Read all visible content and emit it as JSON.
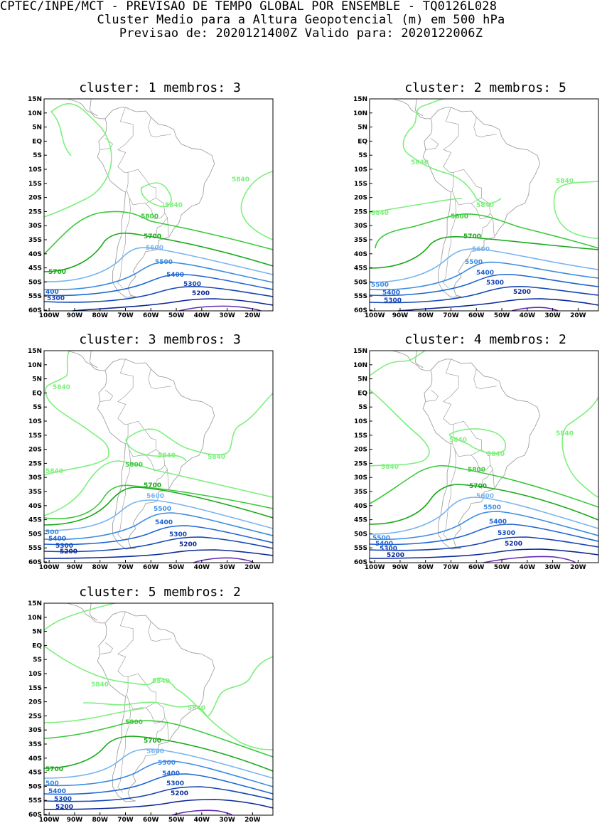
{
  "header": {
    "line1": "CPTEC/INPE/MCT - PREVISAO DE TEMPO GLOBAL POR ENSEMBLE - TQ0126L028",
    "line2": "Cluster Medio para a Altura Geopotencial (m) em 500 hPa",
    "line3": "Previsao de: 2020121400Z    Valido para: 2020122006Z"
  },
  "lat_labels": [
    "15N",
    "10N",
    "5N",
    "EQ",
    "5S",
    "10S",
    "15S",
    "20S",
    "25S",
    "30S",
    "35S",
    "40S",
    "45S",
    "50S",
    "55S",
    "60S"
  ],
  "lon_labels": [
    "100W",
    "90W",
    "80W",
    "70W",
    "60W",
    "50W",
    "40W",
    "30W",
    "20W"
  ],
  "colors": {
    "c5840": "#7cf07c",
    "c5800": "#3cc83c",
    "c5700": "#18a818",
    "c5600": "#78b4f0",
    "c5500": "#3c8ce0",
    "c5400": "#1e64d2",
    "c5300": "#1446b4",
    "c5200": "#0a2896",
    "c5100": "#6428b4",
    "coast": "#a0a0a0"
  },
  "panels": [
    {
      "title": "cluster: 1   membros: 3",
      "labels": {
        "5840a": "5840",
        "5840b": "5840",
        "5800": "5800",
        "5700a": "5700",
        "5700b": "5700",
        "5600": "5600",
        "5500": "5500",
        "5400a": "5400",
        "5400b": "400",
        "5300a": "5300",
        "5300b": "5300",
        "5200": "5200"
      }
    },
    {
      "title": "cluster: 2   membros: 5",
      "labels": {
        "5840a": "5840",
        "5840b": "5840",
        "5840c": "5840",
        "5840d": "5840",
        "5800": "5800",
        "5700": "5700",
        "5600": "5600",
        "5500a": "5500",
        "5500b": "5500",
        "5400a": "5400",
        "5400b": "5400",
        "5300a": "5300",
        "5300b": "5300",
        "5200": "5200"
      }
    },
    {
      "title": "cluster: 3   membros: 3",
      "labels": {
        "5840a": "5840",
        "5840b": "5840",
        "5840c": "5840",
        "5840d": "5840",
        "5800": "5800",
        "5700": "5700",
        "5600": "5600",
        "5500a": "5500",
        "5500b": "500",
        "5400a": "5400",
        "5400b": "5400",
        "5300a": "5300",
        "5300b": "5300",
        "5200a": "5200",
        "5200b": "5200"
      }
    },
    {
      "title": "cluster: 4   membros: 2",
      "labels": {
        "5840a": "5840",
        "5840b": "5840",
        "5840c": "5840",
        "5840d": "5840",
        "5800": "5800",
        "5700": "5700",
        "5600": "5600",
        "5500a": "5500",
        "5500b": "5500",
        "5400a": "5400",
        "5400b": "5400",
        "5300a": "5300",
        "5300b": "5300",
        "5200a": "5200",
        "5200b": "5200"
      }
    },
    {
      "title": "cluster: 5   membros: 2",
      "labels": {
        "5840a": "5840",
        "5840b": "5840",
        "5840c": "5840",
        "5800": "5800",
        "5700a": "5700",
        "5700b": "5700",
        "5600": "5600",
        "5500a": "5500",
        "5500b": "500",
        "5400a": "5400",
        "5400b": "5400",
        "5300a": "5300",
        "5300b": "5300",
        "5200a": "5200",
        "5200b": "5200"
      }
    }
  ]
}
